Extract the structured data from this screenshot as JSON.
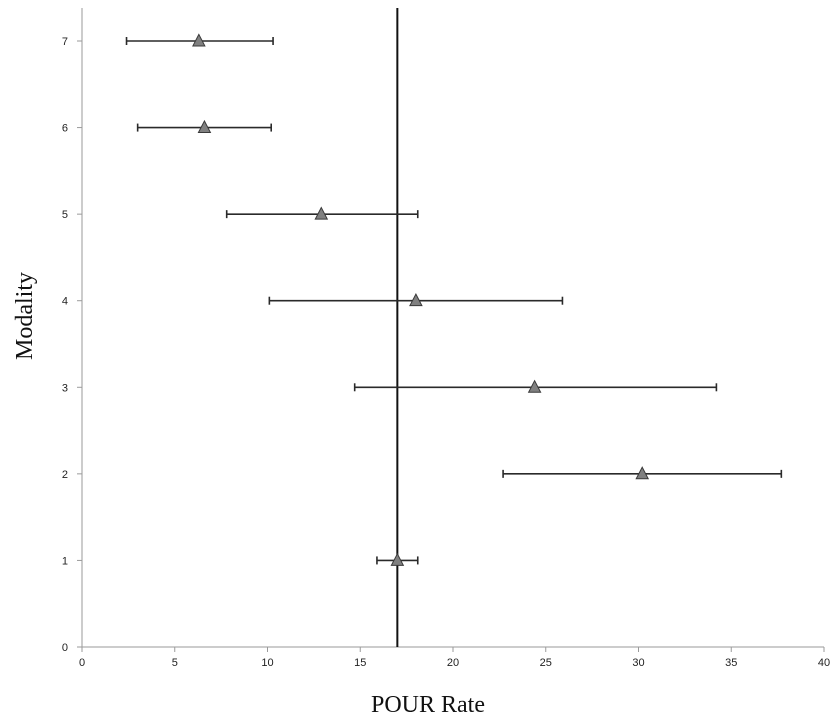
{
  "chart_data": {
    "type": "scatter",
    "title": "",
    "xlabel": "POUR Rate",
    "ylabel": "Modality",
    "xlim": [
      0,
      40
    ],
    "ylim": [
      0,
      7
    ],
    "xticks": [
      "0",
      "5",
      "10",
      "15",
      "20",
      "25",
      "30",
      "35",
      "40"
    ],
    "yticks": [
      "0",
      "1",
      "2",
      "3",
      "4",
      "5",
      "6",
      "7"
    ],
    "grid": false,
    "legend": "none",
    "reference_line_x": 17,
    "series": [
      {
        "marker": "triangle",
        "color": "#808080",
        "points": [
          {
            "y": 1,
            "x": 17.0,
            "x_low": 15.9,
            "x_high": 18.1
          },
          {
            "y": 2,
            "x": 30.2,
            "x_low": 22.7,
            "x_high": 37.7
          },
          {
            "y": 3,
            "x": 24.4,
            "x_low": 14.7,
            "x_high": 34.2
          },
          {
            "y": 4,
            "x": 18.0,
            "x_low": 10.1,
            "x_high": 25.9
          },
          {
            "y": 5,
            "x": 12.9,
            "x_low": 7.8,
            "x_high": 18.1
          },
          {
            "y": 6,
            "x": 6.6,
            "x_low": 3.0,
            "x_high": 10.2
          },
          {
            "y": 7,
            "x": 6.3,
            "x_low": 2.4,
            "x_high": 10.3
          }
        ]
      }
    ]
  }
}
